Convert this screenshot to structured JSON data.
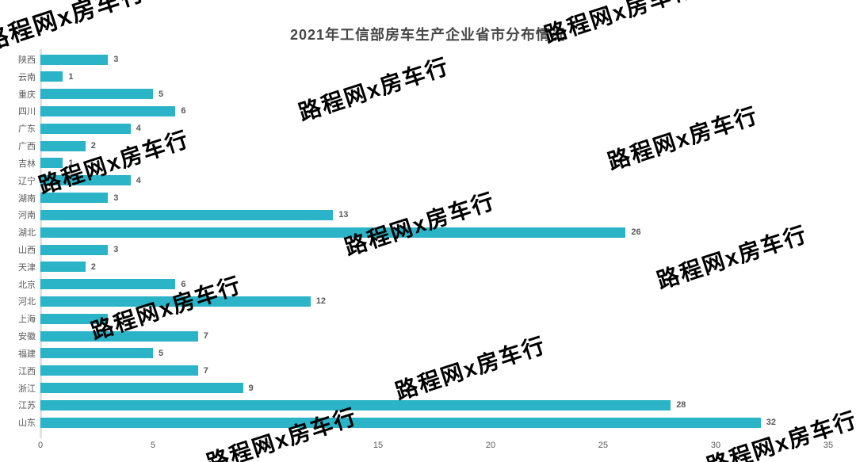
{
  "title": "2021年工信部房车生产企业省市分布情况",
  "watermark": {
    "text": "路程网x房车行",
    "color": "#000000"
  },
  "chart_data": {
    "type": "bar",
    "orientation": "horizontal",
    "title": "2021年工信部房车生产企业省市分布情况",
    "categories": [
      "陕西",
      "云南",
      "重庆",
      "四川",
      "广东",
      "广西",
      "吉林",
      "辽宁",
      "湖南",
      "河南",
      "湖北",
      "山西",
      "天津",
      "北京",
      "河北",
      "上海",
      "安徽",
      "福建",
      "江西",
      "浙江",
      "江苏",
      "山东"
    ],
    "values": [
      3,
      1,
      5,
      6,
      4,
      2,
      1,
      4,
      3,
      13,
      26,
      3,
      2,
      6,
      12,
      3,
      7,
      5,
      7,
      9,
      28,
      32
    ],
    "xlabel": "",
    "ylabel": "",
    "xlim": [
      0,
      35
    ],
    "xticks": [
      0,
      5,
      10,
      15,
      20,
      25,
      30,
      35
    ],
    "grid": false,
    "legend": "none",
    "bar_color": "#2bb3c7",
    "value_labels_shown": true
  }
}
